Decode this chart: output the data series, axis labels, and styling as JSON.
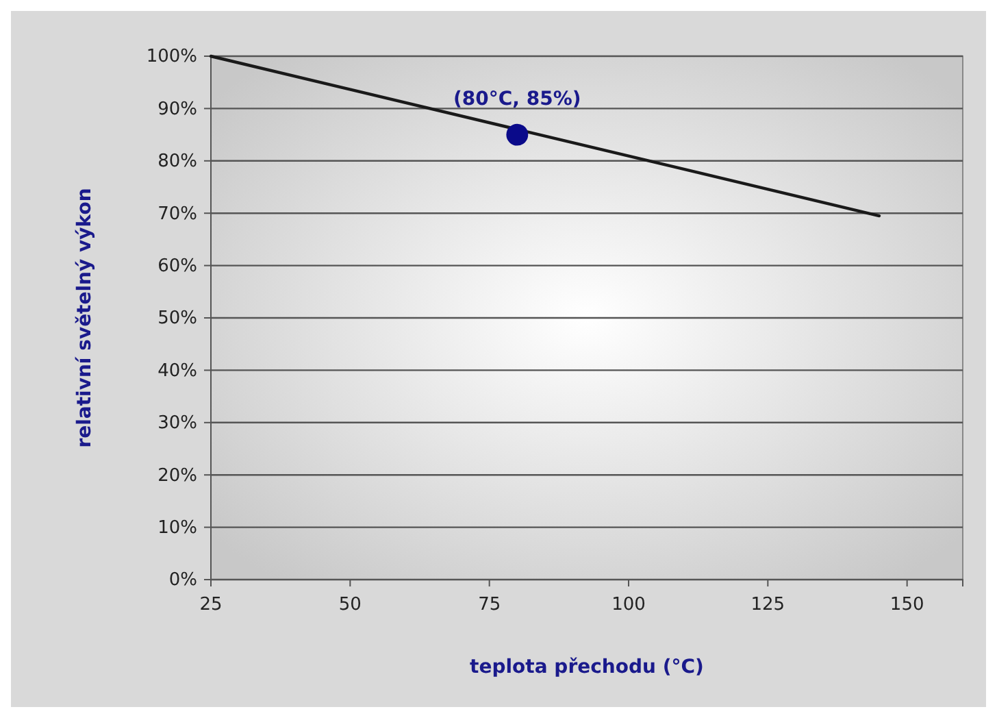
{
  "chart_data": {
    "type": "line",
    "xlabel": "teplota přechodu (°C)",
    "ylabel": "relativní světelný výkon",
    "xlim": [
      25,
      160
    ],
    "xticks": [
      25,
      50,
      75,
      100,
      125,
      150
    ],
    "ylim": [
      0,
      100
    ],
    "yticks": [
      {
        "value": 0,
        "label": "0%"
      },
      {
        "value": 10,
        "label": "10%"
      },
      {
        "value": 20,
        "label": "20%"
      },
      {
        "value": 30,
        "label": "30%"
      },
      {
        "value": 40,
        "label": "40%"
      },
      {
        "value": 50,
        "label": "50%"
      },
      {
        "value": 60,
        "label": "60%"
      },
      {
        "value": 70,
        "label": "70%"
      },
      {
        "value": 80,
        "label": "80%"
      },
      {
        "value": 90,
        "label": "90%"
      },
      {
        "value": 100,
        "label": "100%"
      }
    ],
    "grid": "y",
    "series": [
      {
        "color": "#1a1a1a",
        "x": [
          25,
          145
        ],
        "values": [
          100,
          69.5
        ],
        "marker": "none"
      },
      {
        "type": "scatter",
        "color": "#0a0a8a",
        "x": [
          80
        ],
        "values": [
          85
        ],
        "marker": "circle"
      }
    ],
    "annotations": [
      {
        "text": "(80°C, 85%)",
        "x": 80,
        "y": 85
      }
    ]
  }
}
